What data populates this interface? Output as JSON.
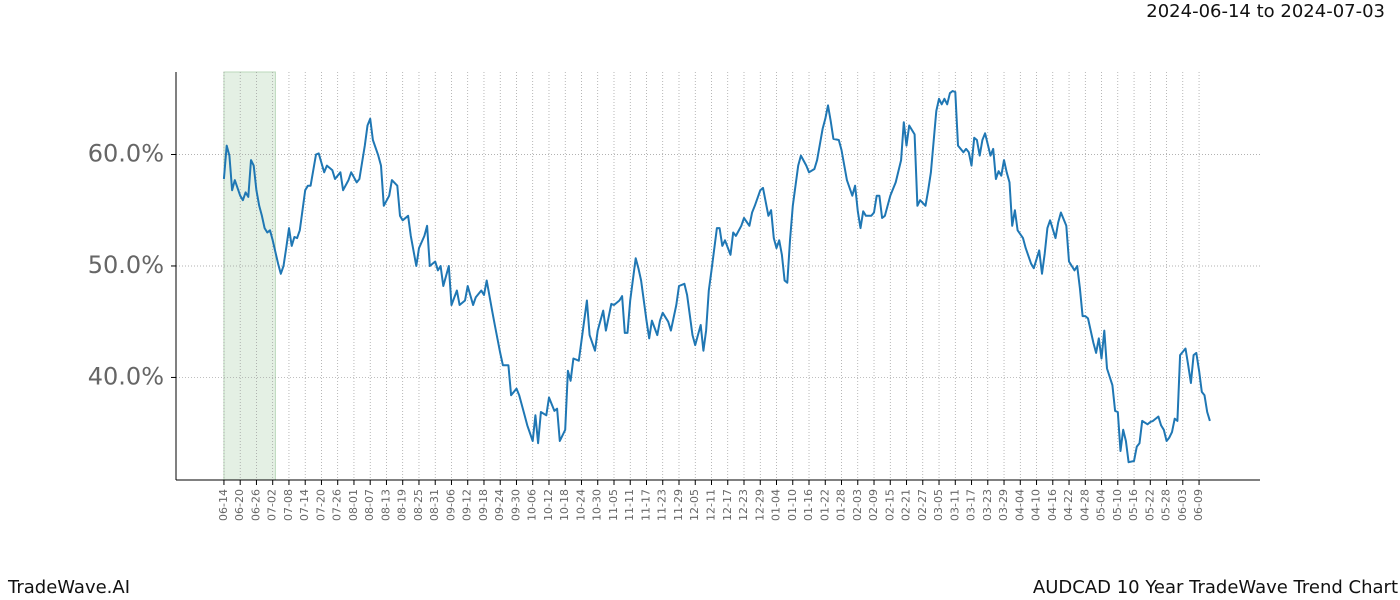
{
  "chart_data": {
    "type": "line",
    "title": "AUDCAD 10 Year TradeWave Trend Chart",
    "subtitle": "2024-06-14 to 2024-07-03",
    "brand": "TradeWave.AI",
    "color": "#1f77b4",
    "highlight": [
      0,
      19
    ],
    "highlight_color": "#d9ead9",
    "grid": true,
    "xlim": [
      -17.7,
      382.5
    ],
    "ylim": [
      30.8,
      67.4
    ],
    "yticks": [
      {
        "value": 40,
        "label": "40.0%"
      },
      {
        "value": 50,
        "label": "50.0%"
      },
      {
        "value": 60,
        "label": "60.0%"
      }
    ],
    "xticks": [
      {
        "value": 0,
        "label": "06-14"
      },
      {
        "value": 6,
        "label": "06-20"
      },
      {
        "value": 12,
        "label": "06-26"
      },
      {
        "value": 18,
        "label": "07-02"
      },
      {
        "value": 24,
        "label": "07-08"
      },
      {
        "value": 30,
        "label": "07-14"
      },
      {
        "value": 36,
        "label": "07-20"
      },
      {
        "value": 42,
        "label": "07-26"
      },
      {
        "value": 48,
        "label": "08-01"
      },
      {
        "value": 54,
        "label": "08-07"
      },
      {
        "value": 60,
        "label": "08-13"
      },
      {
        "value": 66,
        "label": "08-19"
      },
      {
        "value": 72,
        "label": "08-25"
      },
      {
        "value": 78,
        "label": "08-31"
      },
      {
        "value": 84,
        "label": "09-06"
      },
      {
        "value": 90,
        "label": "09-12"
      },
      {
        "value": 96,
        "label": "09-18"
      },
      {
        "value": 102,
        "label": "09-24"
      },
      {
        "value": 108,
        "label": "09-30"
      },
      {
        "value": 114,
        "label": "10-06"
      },
      {
        "value": 120,
        "label": "10-12"
      },
      {
        "value": 126,
        "label": "10-18"
      },
      {
        "value": 132,
        "label": "10-24"
      },
      {
        "value": 138,
        "label": "10-30"
      },
      {
        "value": 144,
        "label": "11-05"
      },
      {
        "value": 150,
        "label": "11-11"
      },
      {
        "value": 156,
        "label": "11-17"
      },
      {
        "value": 162,
        "label": "11-23"
      },
      {
        "value": 168,
        "label": "11-29"
      },
      {
        "value": 174,
        "label": "12-05"
      },
      {
        "value": 180,
        "label": "12-11"
      },
      {
        "value": 186,
        "label": "12-17"
      },
      {
        "value": 192,
        "label": "12-23"
      },
      {
        "value": 198,
        "label": "12-29"
      },
      {
        "value": 204,
        "label": "01-04"
      },
      {
        "value": 210,
        "label": "01-10"
      },
      {
        "value": 216,
        "label": "01-16"
      },
      {
        "value": 222,
        "label": "01-22"
      },
      {
        "value": 228,
        "label": "01-28"
      },
      {
        "value": 234,
        "label": "02-03"
      },
      {
        "value": 240,
        "label": "02-09"
      },
      {
        "value": 246,
        "label": "02-15"
      },
      {
        "value": 252,
        "label": "02-21"
      },
      {
        "value": 258,
        "label": "02-27"
      },
      {
        "value": 264,
        "label": "03-05"
      },
      {
        "value": 270,
        "label": "03-11"
      },
      {
        "value": 276,
        "label": "03-17"
      },
      {
        "value": 282,
        "label": "03-23"
      },
      {
        "value": 288,
        "label": "03-29"
      },
      {
        "value": 294,
        "label": "04-04"
      },
      {
        "value": 300,
        "label": "04-10"
      },
      {
        "value": 306,
        "label": "04-16"
      },
      {
        "value": 312,
        "label": "04-22"
      },
      {
        "value": 318,
        "label": "04-28"
      },
      {
        "value": 324,
        "label": "05-04"
      },
      {
        "value": 330,
        "label": "05-10"
      },
      {
        "value": 336,
        "label": "05-16"
      },
      {
        "value": 342,
        "label": "05-22"
      },
      {
        "value": 348,
        "label": "05-28"
      },
      {
        "value": 354,
        "label": "06-03"
      },
      {
        "value": 360,
        "label": "06-09"
      }
    ],
    "x": [
      0,
      1,
      2,
      3,
      4,
      6,
      7,
      8,
      9,
      10,
      11,
      12,
      13,
      14,
      15,
      16,
      17,
      18,
      20,
      21,
      22,
      23,
      24,
      25,
      26,
      27,
      28,
      30,
      31,
      32,
      34,
      35,
      37,
      38,
      40,
      41,
      43,
      44,
      46,
      47,
      49,
      50,
      52,
      53,
      54,
      55,
      57,
      58,
      59,
      61,
      62,
      64,
      65,
      66,
      68,
      69,
      71,
      72,
      74,
      75,
      76,
      78,
      79,
      80,
      81,
      83,
      84,
      86,
      87,
      89,
      90,
      92,
      93,
      95,
      96,
      97,
      99,
      100,
      102,
      103,
      105,
      106,
      108,
      109,
      111,
      112,
      114,
      115,
      116,
      117,
      119,
      120,
      122,
      123,
      124,
      126,
      127,
      128,
      129,
      131,
      132,
      134,
      135,
      137,
      138,
      140,
      141,
      143,
      144,
      146,
      147,
      148,
      149,
      150,
      152,
      153,
      154,
      156,
      157,
      158,
      160,
      161,
      162,
      164,
      165,
      167,
      168,
      170,
      171,
      173,
      174,
      176,
      177,
      178,
      179,
      180,
      182,
      183,
      184,
      185,
      187,
      188,
      189,
      191,
      192,
      194,
      195,
      196,
      198,
      199,
      201,
      202,
      203,
      204,
      205,
      206,
      207,
      208,
      209,
      210,
      212,
      213,
      215,
      216,
      218,
      219,
      221,
      222,
      223,
      224,
      225,
      227,
      228,
      230,
      232,
      233,
      234,
      235,
      236,
      237,
      239,
      240,
      241,
      242,
      243,
      244,
      246,
      247,
      248,
      250,
      251,
      252,
      253,
      255,
      256,
      257,
      259,
      260,
      261,
      263,
      264,
      265,
      266,
      267,
      268,
      269,
      270,
      271,
      273,
      274,
      275,
      276,
      277,
      278,
      279,
      280,
      281,
      283,
      284,
      285,
      286,
      287,
      288,
      289,
      290,
      291,
      292,
      293,
      295,
      296,
      298,
      299,
      301,
      302,
      303,
      304,
      305,
      307,
      308,
      309,
      311,
      312,
      314,
      315,
      316,
      317,
      318,
      319,
      321,
      322,
      323,
      324,
      325,
      326,
      328,
      329,
      330,
      331,
      332,
      333,
      334,
      336,
      337,
      338,
      339,
      341,
      342,
      343,
      345,
      346,
      347,
      348,
      349,
      350,
      351,
      352,
      353,
      355,
      356,
      357,
      358,
      359,
      360,
      361,
      362,
      363,
      364
    ],
    "values": [
      57.8,
      60.8,
      59.9,
      56.8,
      57.7,
      56.3,
      55.9,
      56.6,
      56.2,
      59.5,
      59.0,
      56.8,
      55.4,
      54.5,
      53.4,
      53.0,
      53.2,
      52.3,
      50.2,
      49.3,
      50.0,
      51.6,
      53.4,
      51.8,
      52.6,
      52.5,
      53.2,
      56.8,
      57.2,
      57.2,
      60.0,
      60.1,
      58.4,
      59.0,
      58.6,
      57.8,
      58.4,
      56.8,
      57.7,
      58.4,
      57.5,
      57.8,
      60.8,
      62.6,
      63.2,
      61.3,
      59.9,
      59.0,
      55.4,
      56.3,
      57.7,
      57.2,
      54.5,
      54.1,
      54.5,
      52.7,
      50.0,
      51.6,
      52.7,
      53.6,
      50.0,
      50.4,
      49.6,
      50.0,
      48.2,
      50.0,
      46.5,
      47.8,
      46.5,
      46.9,
      48.2,
      46.5,
      47.2,
      47.8,
      47.4,
      48.7,
      46.0,
      44.7,
      42.2,
      41.1,
      41.1,
      38.4,
      39.0,
      38.4,
      36.6,
      35.7,
      34.3,
      36.6,
      34.1,
      36.9,
      36.6,
      38.2,
      37.0,
      37.2,
      34.3,
      35.3,
      40.6,
      39.7,
      41.7,
      41.5,
      43.3,
      46.9,
      43.8,
      42.4,
      44.2,
      46.0,
      44.2,
      46.6,
      46.5,
      46.9,
      47.3,
      44.0,
      44.0,
      46.9,
      50.7,
      49.8,
      48.7,
      45.1,
      43.5,
      45.1,
      43.8,
      45.1,
      45.8,
      45.0,
      44.2,
      46.5,
      48.2,
      48.4,
      47.4,
      43.8,
      42.9,
      44.7,
      42.4,
      44.2,
      47.8,
      49.6,
      53.4,
      53.4,
      51.8,
      52.3,
      51.0,
      53.0,
      52.7,
      53.6,
      54.3,
      53.6,
      54.8,
      55.4,
      56.8,
      57.0,
      54.5,
      55.0,
      52.5,
      51.6,
      52.3,
      51.0,
      48.7,
      48.5,
      52.3,
      55.4,
      59.0,
      59.9,
      59.0,
      58.4,
      58.7,
      59.5,
      62.3,
      63.2,
      64.4,
      63.0,
      61.4,
      61.3,
      60.4,
      57.7,
      56.3,
      57.2,
      54.9,
      53.4,
      54.9,
      54.5,
      54.5,
      54.8,
      56.3,
      56.3,
      54.3,
      54.5,
      56.3,
      56.9,
      57.5,
      59.5,
      62.9,
      60.8,
      62.6,
      61.8,
      55.4,
      55.9,
      55.4,
      56.8,
      58.4,
      63.9,
      65.0,
      64.5,
      65.0,
      64.5,
      65.5,
      65.7,
      65.6,
      60.8,
      60.2,
      60.5,
      60.2,
      59.0,
      61.5,
      61.3,
      59.9,
      61.3,
      61.9,
      59.9,
      60.5,
      57.8,
      58.5,
      58.1,
      59.5,
      58.4,
      57.5,
      53.6,
      55.0,
      53.2,
      52.5,
      51.6,
      50.2,
      49.8,
      51.4,
      49.3,
      51.1,
      53.4,
      54.1,
      52.5,
      53.9,
      54.8,
      53.6,
      50.4,
      49.6,
      50.0,
      48.0,
      45.5,
      45.5,
      45.3,
      43.1,
      42.2,
      43.5,
      41.7,
      44.2,
      40.8,
      39.3,
      37.0,
      36.9,
      33.4,
      35.3,
      34.3,
      32.4,
      32.5,
      33.8,
      34.1,
      36.1,
      35.8,
      36.0,
      36.1,
      36.5,
      35.7,
      35.3,
      34.3,
      34.6,
      35.1,
      36.3,
      36.1,
      42.0,
      42.6,
      41.1,
      39.5,
      42.0,
      42.2,
      40.6,
      38.7,
      38.4,
      36.9,
      36.1
    ]
  }
}
